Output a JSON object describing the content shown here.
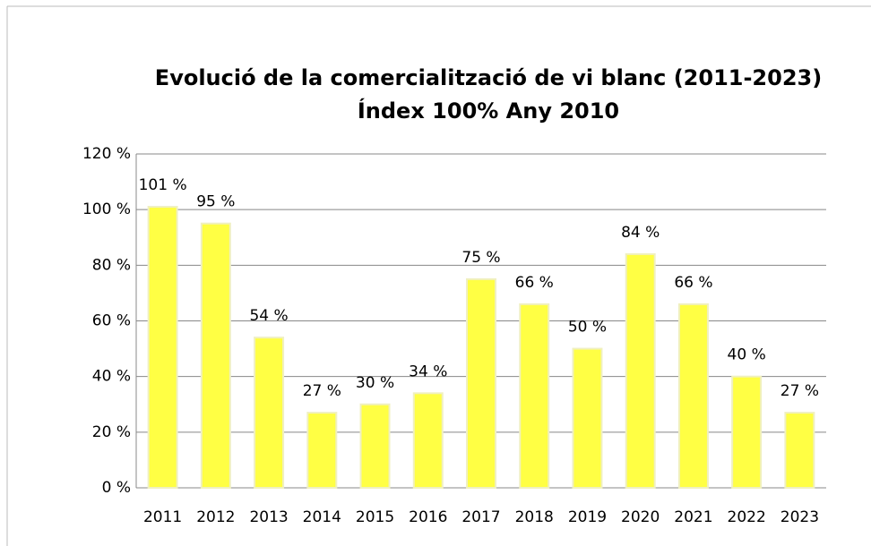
{
  "chart_data": {
    "type": "bar",
    "title": [
      "Evolució de la comercialització de  vi blanc (2011-2023)",
      "Índex 100% Any 2010"
    ],
    "categories": [
      "2011",
      "2012",
      "2013",
      "2014",
      "2015",
      "2016",
      "2017",
      "2018",
      "2019",
      "2020",
      "2021",
      "2022",
      "2023"
    ],
    "values": [
      101,
      95,
      54,
      27,
      30,
      34,
      75,
      66,
      50,
      84,
      66,
      40,
      27
    ],
    "value_labels": [
      "101 %",
      "95 %",
      "54 %",
      "27 %",
      "30 %",
      "34 %",
      "75 %",
      "66 %",
      "50 %",
      "84 %",
      "66 %",
      "40 %",
      "27 %"
    ],
    "color": "#ffff44",
    "ylim": [
      0,
      120
    ],
    "yticks": [
      {
        "value": 0,
        "label": "0 %"
      },
      {
        "value": 20,
        "label": "20 %"
      },
      {
        "value": 40,
        "label": "40 %"
      },
      {
        "value": 60,
        "label": "60 %"
      },
      {
        "value": 80,
        "label": "80 %"
      },
      {
        "value": 100,
        "label": "100 %"
      },
      {
        "value": 120,
        "label": "120 %"
      }
    ],
    "grid": true
  }
}
